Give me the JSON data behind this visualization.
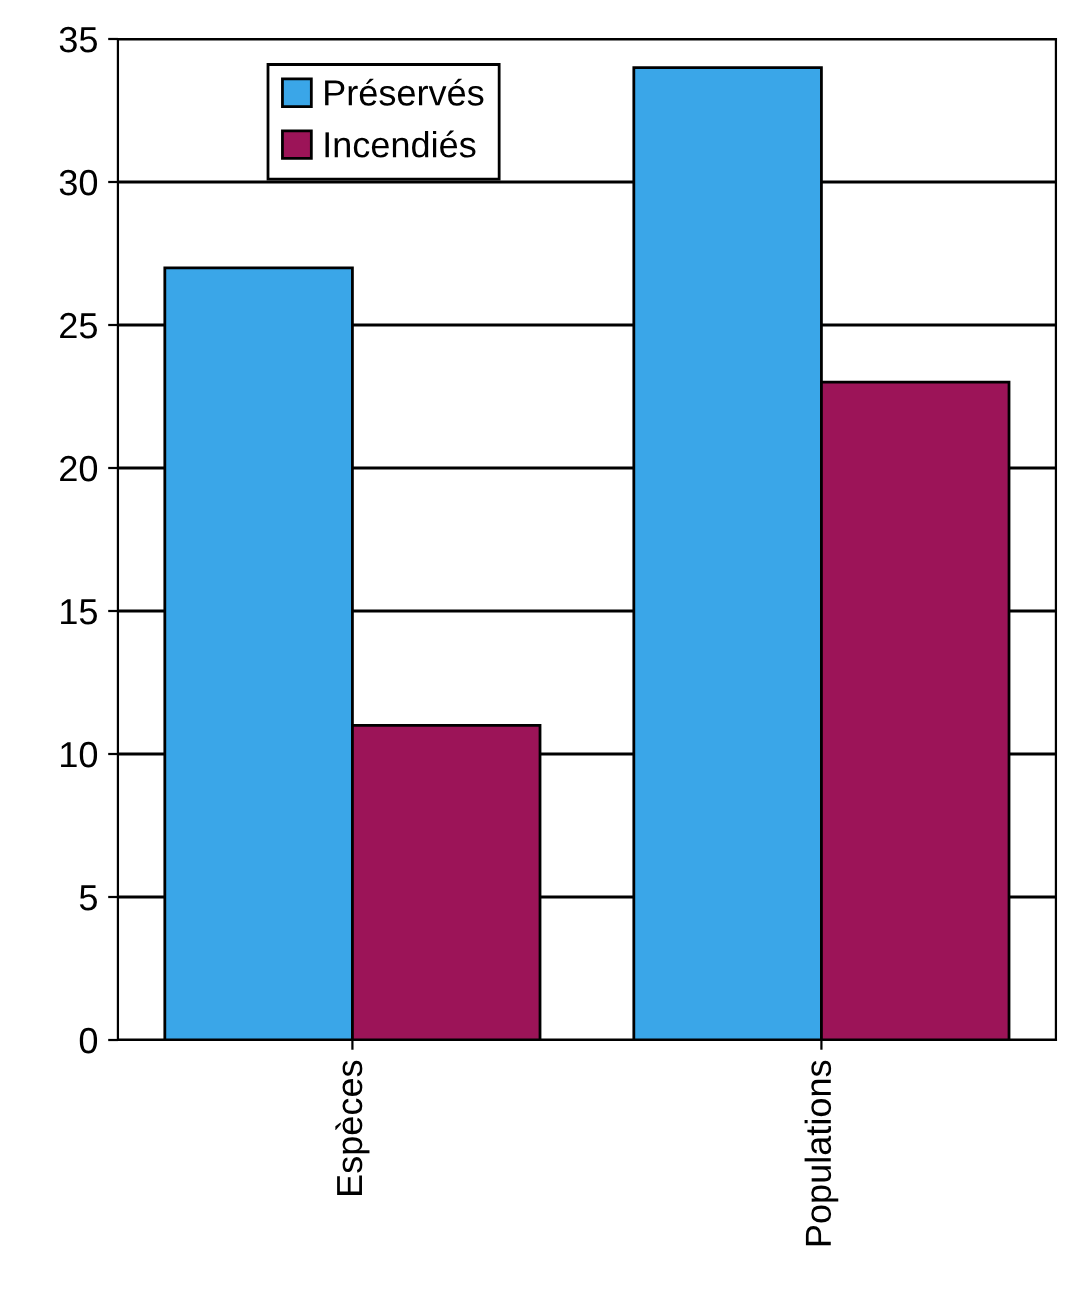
{
  "chart_data": {
    "type": "bar",
    "categories": [
      "Espèces",
      "Populations"
    ],
    "series": [
      {
        "name": "Préservés",
        "color": "#3aa6e8",
        "values": [
          27,
          34
        ]
      },
      {
        "name": "Incendiés",
        "color": "#9c1458",
        "values": [
          11,
          23
        ]
      }
    ],
    "ylim": [
      0,
      35
    ],
    "yticks": [
      0,
      5,
      10,
      15,
      20,
      25,
      30,
      35
    ],
    "grid": "y",
    "legend": "top left"
  }
}
